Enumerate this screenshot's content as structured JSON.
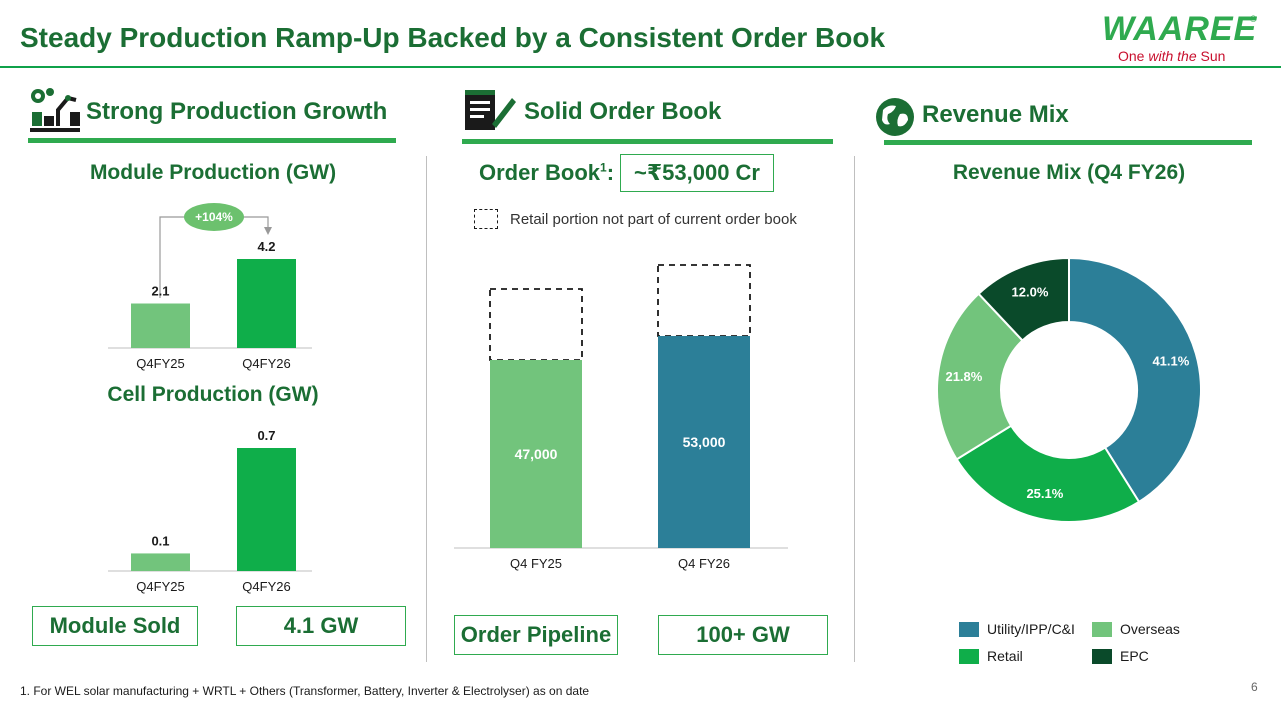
{
  "header": {
    "title": "Steady Production Ramp-Up Backed by a Consistent Order Book",
    "logo_text": "WAAREE",
    "logo_registered": "®",
    "tagline_prefix": "One ",
    "tagline_italic": "with the",
    "tagline_suffix": " Sun"
  },
  "colors": {
    "green_title": "#1b6e34",
    "accent_green": "#2faa4f",
    "light_green": "#72c47c",
    "mid_green": "#0fae4a",
    "dark_green": "#0a4a2a",
    "teal": "#2c7f98",
    "brand_red": "#c8102e"
  },
  "sections": {
    "production": {
      "title": "Strong Production Growth",
      "icon": "factory-robot-icon"
    },
    "order_book": {
      "title": "Solid Order Book",
      "icon": "notepad-pencil-icon"
    },
    "revenue": {
      "title": "Revenue Mix",
      "icon": "globe-icon"
    }
  },
  "production": {
    "growth_badge": "+104%",
    "kpi_label": "Module Sold",
    "kpi_value": "4.1 GW"
  },
  "order_book": {
    "label": "Order Book",
    "label_sup": "1",
    "label_colon": ":",
    "value": "~₹53,000 Cr",
    "legend_note": "Retail portion not part of current order book",
    "pipeline_label": "Order Pipeline",
    "pipeline_value": "100+ GW"
  },
  "chart_data": [
    {
      "type": "bar",
      "title": "Module Production (GW)",
      "categories": [
        "Q4FY25",
        "Q4FY26"
      ],
      "values": [
        2.1,
        4.2
      ],
      "value_labels": [
        "2.1",
        "4.2"
      ],
      "colors": [
        "#72c47c",
        "#0fae4a"
      ],
      "annotation": "+104%",
      "ylim": [
        0,
        4.2
      ]
    },
    {
      "type": "bar",
      "title": "Cell Production (GW)",
      "categories": [
        "Q4FY25",
        "Q4FY26"
      ],
      "values": [
        0.1,
        0.7
      ],
      "value_labels": [
        "0.1",
        "0.7"
      ],
      "colors": [
        "#72c47c",
        "#0fae4a"
      ],
      "ylim": [
        0,
        0.7
      ]
    },
    {
      "type": "bar",
      "title": "Order Book",
      "categories": [
        "Q4 FY25",
        "Q4 FY26"
      ],
      "values": [
        47000,
        53000
      ],
      "value_labels": [
        "47,000",
        "53,000"
      ],
      "colors": [
        "#72c47c",
        "#2c7f98"
      ],
      "note": "Dashed boxes above bars: retail portion not part of current order book"
    },
    {
      "type": "pie",
      "title": "Revenue Mix (Q4 FY26)",
      "donut": true,
      "labels": [
        "Utility/IPP/C&I",
        "Retail",
        "Overseas",
        "EPC"
      ],
      "values": [
        41.1,
        25.1,
        21.8,
        12.0
      ],
      "value_labels": [
        "41.1%",
        "25.1%",
        "21.8%",
        "12.0%"
      ],
      "colors": [
        "#2c7f98",
        "#0fae4a",
        "#72c47c",
        "#0a4a2a"
      ],
      "legend_position": "bottom"
    }
  ],
  "footer": {
    "footnote": "1. For WEL solar manufacturing + WRTL + Others (Transformer, Battery, Inverter & Electrolyser) as on date",
    "page_number": "6"
  }
}
